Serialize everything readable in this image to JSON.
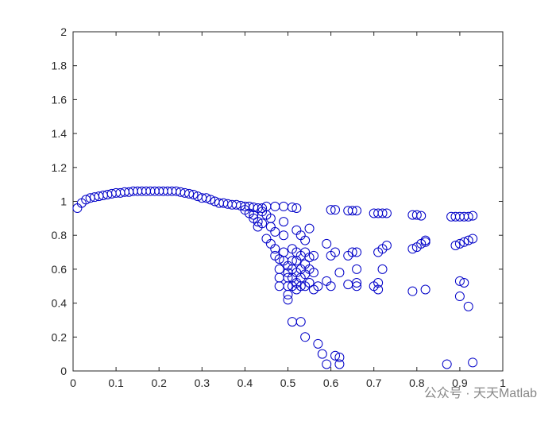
{
  "chart_data": {
    "type": "scatter",
    "color": "#0000c8",
    "xlim": [
      0,
      1
    ],
    "ylim": [
      0,
      2
    ],
    "xticks": [
      0,
      0.1,
      0.2,
      0.3,
      0.4,
      0.5,
      0.6,
      0.7,
      0.8,
      0.9,
      1
    ],
    "yticks": [
      0,
      0.2,
      0.4,
      0.6,
      0.8,
      1,
      1.2,
      1.4,
      1.6,
      1.8,
      2
    ],
    "watermark": "公众号 · 天天Matlab",
    "x": [
      0.01,
      0.02,
      0.03,
      0.04,
      0.05,
      0.06,
      0.07,
      0.08,
      0.09,
      0.1,
      0.11,
      0.12,
      0.13,
      0.14,
      0.15,
      0.16,
      0.17,
      0.18,
      0.19,
      0.2,
      0.21,
      0.22,
      0.23,
      0.24,
      0.25,
      0.26,
      0.27,
      0.28,
      0.29,
      0.3,
      0.31,
      0.32,
      0.33,
      0.34,
      0.35,
      0.36,
      0.37,
      0.38,
      0.39,
      0.4,
      0.41,
      0.42,
      0.43,
      0.44,
      0.45,
      0.47,
      0.49,
      0.51,
      0.52,
      0.6,
      0.61,
      0.64,
      0.65,
      0.66,
      0.7,
      0.71,
      0.72,
      0.73,
      0.79,
      0.8,
      0.81,
      0.88,
      0.89,
      0.9,
      0.91,
      0.92,
      0.93,
      0.4,
      0.41,
      0.42,
      0.42,
      0.43,
      0.44,
      0.43,
      0.44,
      0.45,
      0.46,
      0.46,
      0.47,
      0.45,
      0.46,
      0.47,
      0.47,
      0.48,
      0.48,
      0.48,
      0.48,
      0.49,
      0.49,
      0.49,
      0.49,
      0.5,
      0.5,
      0.5,
      0.5,
      0.5,
      0.5,
      0.51,
      0.51,
      0.51,
      0.51,
      0.51,
      0.52,
      0.52,
      0.52,
      0.52,
      0.52,
      0.52,
      0.53,
      0.53,
      0.53,
      0.53,
      0.53,
      0.54,
      0.54,
      0.54,
      0.54,
      0.54,
      0.55,
      0.55,
      0.55,
      0.55,
      0.56,
      0.56,
      0.56,
      0.57,
      0.59,
      0.59,
      0.6,
      0.6,
      0.61,
      0.62,
      0.64,
      0.64,
      0.65,
      0.66,
      0.66,
      0.66,
      0.66,
      0.7,
      0.71,
      0.71,
      0.71,
      0.72,
      0.72,
      0.73,
      0.79,
      0.8,
      0.81,
      0.82,
      0.82,
      0.79,
      0.82,
      0.89,
      0.9,
      0.91,
      0.92,
      0.93,
      0.9,
      0.91,
      0.9,
      0.92,
      0.51,
      0.53,
      0.54,
      0.57,
      0.58,
      0.59,
      0.61,
      0.62,
      0.62,
      0.87,
      0.93
    ],
    "values": [
      0.96,
      0.99,
      1.01,
      1.02,
      1.025,
      1.03,
      1.035,
      1.04,
      1.045,
      1.05,
      1.05,
      1.055,
      1.055,
      1.06,
      1.06,
      1.06,
      1.06,
      1.06,
      1.06,
      1.06,
      1.06,
      1.06,
      1.06,
      1.06,
      1.055,
      1.05,
      1.045,
      1.04,
      1.03,
      1.02,
      1.02,
      1.01,
      1.0,
      0.99,
      0.99,
      0.985,
      0.98,
      0.98,
      0.975,
      0.97,
      0.97,
      0.965,
      0.96,
      0.96,
      0.97,
      0.97,
      0.97,
      0.965,
      0.96,
      0.95,
      0.95,
      0.945,
      0.945,
      0.945,
      0.93,
      0.93,
      0.93,
      0.93,
      0.92,
      0.92,
      0.915,
      0.91,
      0.91,
      0.91,
      0.91,
      0.91,
      0.915,
      0.95,
      0.93,
      0.92,
      0.9,
      0.88,
      0.87,
      0.85,
      0.94,
      0.92,
      0.9,
      0.85,
      0.82,
      0.78,
      0.75,
      0.72,
      0.68,
      0.66,
      0.6,
      0.55,
      0.5,
      0.88,
      0.8,
      0.7,
      0.65,
      0.62,
      0.58,
      0.55,
      0.5,
      0.45,
      0.42,
      0.72,
      0.65,
      0.6,
      0.55,
      0.5,
      0.83,
      0.7,
      0.65,
      0.58,
      0.52,
      0.48,
      0.8,
      0.68,
      0.6,
      0.55,
      0.5,
      0.77,
      0.7,
      0.63,
      0.57,
      0.5,
      0.84,
      0.67,
      0.6,
      0.52,
      0.68,
      0.58,
      0.48,
      0.5,
      0.75,
      0.53,
      0.68,
      0.5,
      0.7,
      0.58,
      0.68,
      0.51,
      0.7,
      0.7,
      0.6,
      0.52,
      0.5,
      0.5,
      0.7,
      0.52,
      0.48,
      0.72,
      0.6,
      0.74,
      0.72,
      0.73,
      0.75,
      0.76,
      0.77,
      0.47,
      0.48,
      0.74,
      0.75,
      0.76,
      0.77,
      0.78,
      0.53,
      0.52,
      0.44,
      0.38,
      0.29,
      0.29,
      0.2,
      0.16,
      0.1,
      0.04,
      0.09,
      0.08,
      0.04,
      0.04,
      0.05
    ]
  }
}
